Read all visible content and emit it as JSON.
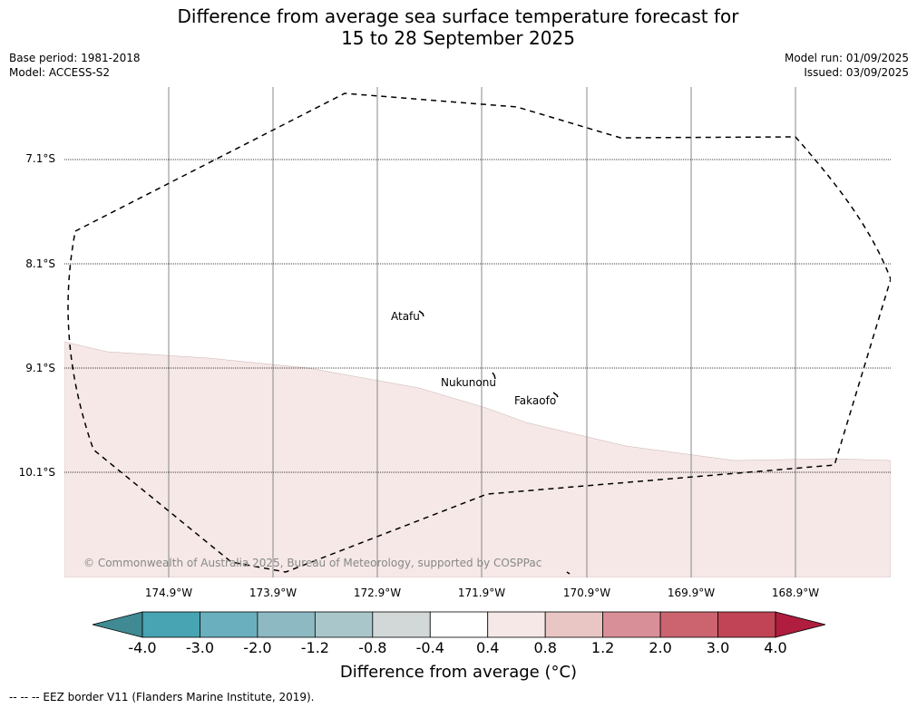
{
  "title_line1": "Difference from average sea surface temperature forecast for",
  "title_line2": "15 to 28 September 2025",
  "meta_left": [
    "Base period: 1981-2018",
    "Model: ACCESS-S2"
  ],
  "meta_right": [
    "Model run: 01/09/2025",
    "Issued: 03/09/2025"
  ],
  "map": {
    "lat_labels": [
      "7.1°S",
      "8.1°S",
      "9.1°S",
      "10.1°S"
    ],
    "lon_labels": [
      "174.9°W",
      "173.9°W",
      "172.9°W",
      "171.9°W",
      "170.9°W",
      "169.9°W",
      "168.9°W"
    ],
    "places": [
      "Atafu",
      "Nukunonu",
      "Fakaofo"
    ],
    "copyright": "© Commonwealth of Australia 2025, Bureau of Meteorology, supported by COSPPac",
    "region_shading": [
      {
        "area": "south",
        "category": "0.4 to 0.8",
        "color": "#f5e8e7"
      },
      {
        "area": "north",
        "category": "-0.4 to 0.4",
        "color": "#ffffff"
      }
    ]
  },
  "colorbar": {
    "ticks": [
      "-4.0",
      "-3.0",
      "-2.0",
      "-1.2",
      "-0.8",
      "-0.4",
      "0.4",
      "0.8",
      "1.2",
      "2.0",
      "3.0",
      "4.0"
    ],
    "colors": [
      "#3f8a93",
      "#48a3b3",
      "#6aafbd",
      "#8db9c3",
      "#a9c7cb",
      "#d1d8d7",
      "#ffffff",
      "#f5e8e7",
      "#e9c6c4",
      "#d98f97",
      "#cc6470",
      "#c14456",
      "#b01d3e"
    ],
    "title": "Difference from average (°C)"
  },
  "footer": "-- -- -- EEZ border V11 (Flanders Marine Institute, 2019)."
}
